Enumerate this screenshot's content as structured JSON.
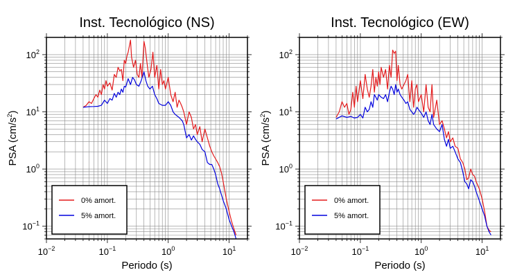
{
  "chart_data": [
    {
      "type": "line",
      "title": "Inst. Tecnológico (NS)",
      "xlabel": "Periodo (s)",
      "ylabel_main": "PSA (cm/s",
      "ylabel_sup": "2",
      "ylabel_end": ")",
      "x_scale": "log",
      "y_scale": "log",
      "xlim": [
        0.01,
        20
      ],
      "ylim": [
        0.06,
        200
      ],
      "grid": true,
      "legend_position": "bottom-left",
      "x_ticks": [
        {
          "value": 0.01,
          "base": "10",
          "exp": "−2"
        },
        {
          "value": 0.1,
          "base": "10",
          "exp": "−1"
        },
        {
          "value": 1,
          "base": "10",
          "exp": "0"
        },
        {
          "value": 10,
          "base": "10",
          "exp": "1"
        }
      ],
      "y_ticks": [
        {
          "value": 0.1,
          "base": "10",
          "exp": "−1"
        },
        {
          "value": 1,
          "base": "10",
          "exp": "0"
        },
        {
          "value": 10,
          "base": "10",
          "exp": "1"
        },
        {
          "value": 100,
          "base": "10",
          "exp": "2"
        }
      ],
      "series": [
        {
          "name": "0% amort.",
          "color": "#e31a1c",
          "x": [
            0.04,
            0.045,
            0.05,
            0.055,
            0.06,
            0.065,
            0.07,
            0.075,
            0.08,
            0.085,
            0.09,
            0.095,
            0.1,
            0.11,
            0.12,
            0.13,
            0.14,
            0.15,
            0.16,
            0.17,
            0.18,
            0.19,
            0.2,
            0.21,
            0.22,
            0.24,
            0.25,
            0.27,
            0.29,
            0.31,
            0.33,
            0.35,
            0.37,
            0.4,
            0.42,
            0.45,
            0.48,
            0.52,
            0.56,
            0.6,
            0.65,
            0.7,
            0.75,
            0.8,
            0.85,
            0.9,
            1.0,
            1.1,
            1.2,
            1.3,
            1.4,
            1.5,
            1.6,
            1.7,
            1.8,
            2.0,
            2.2,
            2.4,
            2.6,
            2.8,
            3.0,
            3.3,
            3.6,
            4.0,
            4.4,
            4.8,
            5.2,
            5.6,
            6.0,
            6.5,
            7.0,
            7.5,
            8.0,
            9.0,
            10,
            11,
            12,
            13
          ],
          "y": [
            12,
            13,
            15,
            14,
            17,
            20,
            18,
            24,
            20,
            30,
            25,
            35,
            28,
            32,
            24,
            45,
            40,
            60,
            52,
            55,
            35,
            80,
            70,
            95,
            110,
            180,
            90,
            60,
            80,
            45,
            40,
            70,
            40,
            170,
            130,
            70,
            40,
            55,
            110,
            40,
            65,
            25,
            55,
            30,
            35,
            25,
            40,
            20,
            15,
            22,
            12,
            16,
            14,
            12,
            10,
            6,
            10,
            8,
            5,
            6,
            4,
            5.5,
            3,
            5,
            3.5,
            2.5,
            2,
            1.7,
            1.5,
            1.3,
            1.1,
            0.85,
            0.6,
            0.3,
            0.18,
            0.12,
            0.09,
            0.07
          ]
        },
        {
          "name": "5% amort.",
          "color": "#0000dd",
          "x": [
            0.04,
            0.05,
            0.06,
            0.07,
            0.08,
            0.09,
            0.1,
            0.11,
            0.12,
            0.13,
            0.14,
            0.15,
            0.16,
            0.17,
            0.18,
            0.19,
            0.2,
            0.22,
            0.24,
            0.26,
            0.28,
            0.3,
            0.33,
            0.36,
            0.4,
            0.43,
            0.46,
            0.5,
            0.55,
            0.6,
            0.65,
            0.7,
            0.8,
            0.9,
            1.0,
            1.1,
            1.2,
            1.3,
            1.5,
            1.7,
            1.8,
            2.0,
            2.2,
            2.4,
            2.6,
            2.8,
            3.0,
            3.3,
            3.6,
            4.0,
            4.4,
            4.8,
            5.2,
            5.6,
            6.0,
            6.5,
            7.0,
            7.5,
            8.0,
            9.0,
            10,
            11,
            12,
            13
          ],
          "y": [
            12,
            12.3,
            12.4,
            12.5,
            13,
            16,
            14,
            17,
            16,
            21,
            18,
            22,
            20,
            25,
            22,
            28,
            27,
            38,
            30,
            40,
            36,
            30,
            28,
            35,
            50,
            35,
            28,
            25,
            28,
            20,
            17,
            14,
            13,
            13,
            15,
            13,
            10,
            9,
            8,
            7,
            6,
            3.5,
            4,
            3.2,
            3.8,
            3.3,
            3.0,
            2.7,
            2.2,
            2.0,
            1.3,
            1.2,
            1.2,
            1.0,
            0.8,
            0.55,
            0.45,
            0.35,
            0.28,
            0.2,
            0.13,
            0.1,
            0.08,
            0.06
          ]
        }
      ]
    },
    {
      "type": "line",
      "title": "Inst. Tecnológico (EW)",
      "xlabel": "Periodo (s)",
      "ylabel_main": "PSA (cm/s",
      "ylabel_sup": "2",
      "ylabel_end": ")",
      "x_scale": "log",
      "y_scale": "log",
      "xlim": [
        0.01,
        20
      ],
      "ylim": [
        0.06,
        200
      ],
      "grid": true,
      "legend_position": "bottom-left",
      "x_ticks": [
        {
          "value": 0.01,
          "base": "10",
          "exp": "−2"
        },
        {
          "value": 0.1,
          "base": "10",
          "exp": "−1"
        },
        {
          "value": 1,
          "base": "10",
          "exp": "0"
        },
        {
          "value": 10,
          "base": "10",
          "exp": "1"
        }
      ],
      "y_ticks": [
        {
          "value": 0.1,
          "base": "10",
          "exp": "−1"
        },
        {
          "value": 1,
          "base": "10",
          "exp": "0"
        },
        {
          "value": 10,
          "base": "10",
          "exp": "1"
        },
        {
          "value": 100,
          "base": "10",
          "exp": "2"
        }
      ],
      "series": [
        {
          "name": "0% amort.",
          "color": "#e31a1c",
          "x": [
            0.04,
            0.045,
            0.05,
            0.055,
            0.06,
            0.065,
            0.07,
            0.075,
            0.08,
            0.085,
            0.09,
            0.1,
            0.11,
            0.12,
            0.13,
            0.14,
            0.15,
            0.16,
            0.17,
            0.18,
            0.19,
            0.2,
            0.21,
            0.22,
            0.24,
            0.26,
            0.28,
            0.3,
            0.32,
            0.34,
            0.36,
            0.38,
            0.4,
            0.42,
            0.45,
            0.48,
            0.52,
            0.56,
            0.6,
            0.65,
            0.7,
            0.75,
            0.8,
            0.85,
            0.9,
            1.0,
            1.1,
            1.2,
            1.3,
            1.4,
            1.5,
            1.6,
            1.8,
            2.0,
            2.2,
            2.4,
            2.6,
            2.8,
            3.0,
            3.3,
            3.6,
            4.0,
            4.4,
            4.8,
            5.2,
            5.6,
            6.0,
            6.5,
            7.0,
            7.5,
            8.0,
            9.0,
            10,
            11,
            12,
            13,
            14
          ],
          "y": [
            8,
            10,
            15,
            12,
            14,
            9,
            11,
            22,
            12,
            28,
            15,
            35,
            17,
            45,
            25,
            18,
            28,
            55,
            22,
            40,
            28,
            50,
            30,
            60,
            40,
            55,
            25,
            65,
            40,
            120,
            105,
            115,
            35,
            65,
            30,
            25,
            30,
            35,
            45,
            15,
            35,
            12,
            25,
            30,
            15,
            20,
            10,
            30,
            12,
            10,
            30,
            8,
            16,
            6,
            7,
            5,
            3.5,
            4.5,
            3,
            3.5,
            2.5,
            2.3,
            1.5,
            1.3,
            1.0,
            0.65,
            0.7,
            1.0,
            0.8,
            0.75,
            0.6,
            0.45,
            0.3,
            0.18,
            0.1,
            0.085,
            0.08
          ]
        },
        {
          "name": "5% amort.",
          "color": "#0000dd",
          "x": [
            0.04,
            0.05,
            0.06,
            0.07,
            0.08,
            0.09,
            0.1,
            0.11,
            0.12,
            0.13,
            0.14,
            0.15,
            0.16,
            0.17,
            0.18,
            0.19,
            0.2,
            0.22,
            0.24,
            0.26,
            0.28,
            0.3,
            0.32,
            0.34,
            0.36,
            0.38,
            0.4,
            0.42,
            0.45,
            0.48,
            0.52,
            0.56,
            0.6,
            0.65,
            0.7,
            0.75,
            0.8,
            0.85,
            0.9,
            1.0,
            1.1,
            1.2,
            1.3,
            1.4,
            1.5,
            1.6,
            1.8,
            2.0,
            2.2,
            2.4,
            2.6,
            2.8,
            3.0,
            3.3,
            3.6,
            4.0,
            4.4,
            4.8,
            5.2,
            5.6,
            6.0,
            6.5,
            7.0,
            7.5,
            8.0,
            9.0,
            10,
            11,
            12,
            13,
            14
          ],
          "y": [
            7.5,
            8.5,
            8,
            8.3,
            7.8,
            8,
            9,
            7.8,
            12,
            10,
            11,
            15,
            12,
            20,
            18,
            16,
            20,
            18,
            17,
            20,
            15,
            22,
            28,
            25,
            20,
            30,
            22,
            25,
            20,
            18,
            16,
            14,
            15,
            11,
            10,
            9,
            10,
            12,
            11,
            9.5,
            8,
            10,
            7,
            6,
            9,
            6,
            5,
            4.5,
            6,
            3.3,
            2.5,
            3.3,
            2.3,
            2.5,
            2.0,
            1.5,
            1.3,
            0.9,
            0.6,
            0.55,
            0.45,
            0.65,
            0.6,
            0.5,
            0.4,
            0.28,
            0.2,
            0.15,
            0.1,
            0.08,
            0.07
          ]
        }
      ]
    }
  ]
}
